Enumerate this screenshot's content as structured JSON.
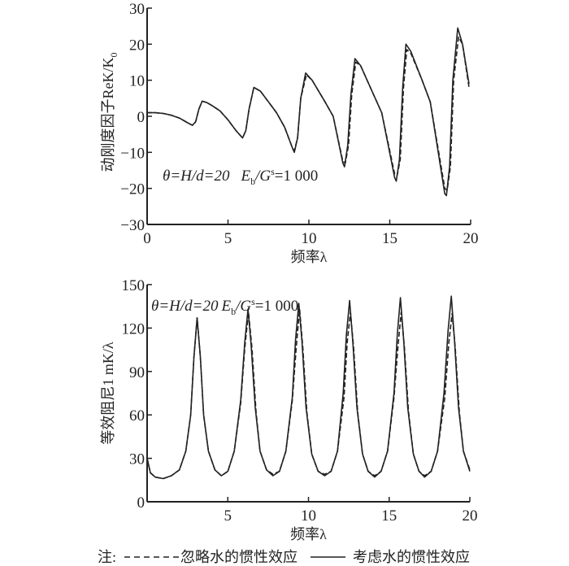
{
  "chart_data": [
    {
      "type": "line",
      "ylabel": "动刚度因子ReK/K",
      "ylabel_sub": "0",
      "xlabel": "频率λ",
      "xlim": [
        0,
        20
      ],
      "ylim": [
        -30,
        30
      ],
      "xticks": [
        "0",
        "5",
        "10",
        "15",
        "20"
      ],
      "xtick_values": [
        0,
        5,
        10,
        15,
        20
      ],
      "yticks": [
        "30",
        "20",
        "10",
        "0",
        "−10",
        "−20",
        "−30"
      ],
      "ytick_values": [
        30,
        20,
        10,
        0,
        -10,
        -20,
        -30
      ],
      "grid": false,
      "annotation": {
        "theta": "θ=H/d=20",
        "e": "E",
        "e_sub": "b",
        "g": "/G",
        "g_sup": "s",
        "val": "=1 000"
      },
      "series": [
        {
          "name": "考虑水的惯性效应",
          "style": "solid",
          "x": [
            0,
            0.5,
            1,
            1.5,
            2,
            2.5,
            2.8,
            3.0,
            3.2,
            3.4,
            3.7,
            4,
            4.5,
            5,
            5.5,
            5.9,
            6.1,
            6.3,
            6.6,
            7,
            7.5,
            8,
            8.5,
            9.0,
            9.1,
            9.3,
            9.5,
            9.8,
            10.2,
            11,
            11.5,
            12.1,
            12.2,
            12.4,
            12.6,
            12.85,
            13.2,
            14,
            14.5,
            15.3,
            15.4,
            15.6,
            15.8,
            16.0,
            16.3,
            17,
            17.5,
            18.4,
            18.5,
            18.7,
            18.9,
            19.2,
            19.5,
            19.9
          ],
          "y": [
            1,
            1,
            0.8,
            0.3,
            -0.5,
            -1.8,
            -2.5,
            -1.5,
            2,
            4.2,
            3.8,
            3,
            1.5,
            -1,
            -4,
            -6,
            -4,
            2,
            8,
            7,
            4,
            1,
            -3,
            -9,
            -10,
            -6,
            5,
            12,
            10,
            4,
            0,
            -13,
            -14,
            -8,
            6,
            16,
            14,
            6,
            1,
            -17,
            -18,
            -12,
            8,
            20,
            18,
            10,
            4,
            -21.5,
            -22,
            -14,
            10,
            24.5,
            20,
            9
          ]
        },
        {
          "name": "忽略水的惯性效应",
          "style": "dashed",
          "x": [
            0,
            0.5,
            1,
            1.5,
            2,
            2.5,
            2.8,
            3.0,
            3.2,
            3.4,
            3.7,
            4,
            4.5,
            5,
            5.5,
            5.9,
            6.1,
            6.3,
            6.6,
            7,
            7.5,
            8,
            8.5,
            9.0,
            9.1,
            9.3,
            9.5,
            9.85,
            10.2,
            11,
            11.5,
            12.1,
            12.25,
            12.45,
            12.65,
            12.9,
            13.2,
            14,
            14.5,
            15.3,
            15.45,
            15.65,
            15.85,
            16.05,
            16.3,
            17,
            17.5,
            18.4,
            18.55,
            18.75,
            18.95,
            19.25,
            19.5,
            19.9
          ],
          "y": [
            1,
            1,
            0.8,
            0.3,
            -0.5,
            -1.8,
            -2.5,
            -1.5,
            2,
            4.2,
            3.8,
            3,
            1.5,
            -1,
            -4,
            -6,
            -4,
            2,
            8,
            7,
            4,
            1,
            -3,
            -9,
            -9.5,
            -6,
            5,
            11.5,
            10,
            4,
            0,
            -12.5,
            -13,
            -8,
            6,
            15,
            14,
            6,
            1,
            -16,
            -16.5,
            -12,
            8,
            18.5,
            17.5,
            10,
            4,
            -20,
            -20.5,
            -14,
            10,
            22,
            20,
            8
          ]
        }
      ]
    },
    {
      "type": "line",
      "ylabel": "等效阻尼1 mK/λ",
      "xlabel": "频率λ",
      "xlim": [
        0,
        20
      ],
      "ylim": [
        0,
        150
      ],
      "xticks": [
        "5",
        "10",
        "15",
        "20"
      ],
      "xtick_values": [
        5,
        10,
        15,
        20
      ],
      "yticks": [
        "150",
        "120",
        "90",
        "60",
        "30",
        "0"
      ],
      "ytick_values": [
        150,
        120,
        90,
        60,
        30,
        0
      ],
      "grid": false,
      "annotation": {
        "theta": "θ=H/d=20",
        "e": "E",
        "e_sub": "b",
        "g": "/G",
        "g_sup": "s",
        "val": "=1 000"
      },
      "series": [
        {
          "name": "考虑水的惯性效应",
          "style": "solid",
          "x": [
            0,
            0.2,
            0.5,
            1,
            1.5,
            2,
            2.4,
            2.7,
            2.9,
            3.1,
            3.3,
            3.5,
            3.8,
            4.2,
            4.6,
            5.0,
            5.4,
            5.8,
            6.05,
            6.25,
            6.45,
            6.7,
            7.0,
            7.4,
            7.8,
            8.2,
            8.6,
            9.0,
            9.2,
            9.4,
            9.6,
            9.85,
            10.2,
            10.6,
            11.0,
            11.4,
            11.8,
            12.15,
            12.35,
            12.55,
            12.75,
            13.0,
            13.35,
            13.7,
            14.1,
            14.5,
            14.9,
            15.3,
            15.5,
            15.7,
            15.9,
            16.15,
            16.5,
            16.85,
            17.2,
            17.6,
            18.0,
            18.4,
            18.65,
            18.85,
            19.05,
            19.3,
            19.6,
            20
          ],
          "y": [
            30,
            20,
            17,
            16,
            18,
            22,
            35,
            60,
            100,
            127,
            100,
            60,
            35,
            22,
            18,
            21,
            35,
            70,
            110,
            133,
            108,
            65,
            35,
            22,
            18,
            21,
            35,
            72,
            112,
            137,
            110,
            65,
            33,
            21,
            18,
            21,
            35,
            75,
            115,
            139,
            110,
            65,
            33,
            21,
            17,
            21,
            35,
            75,
            115,
            141,
            112,
            65,
            33,
            21,
            17,
            21,
            35,
            75,
            118,
            142,
            112,
            65,
            35,
            21
          ]
        },
        {
          "name": "忽略水的惯性效应",
          "style": "dashed",
          "x": [
            0,
            0.2,
            0.5,
            1,
            1.5,
            2,
            2.4,
            2.7,
            2.9,
            3.1,
            3.3,
            3.5,
            3.8,
            4.2,
            4.6,
            5.0,
            5.4,
            5.8,
            6.05,
            6.28,
            6.5,
            6.75,
            7.0,
            7.4,
            7.8,
            8.2,
            8.6,
            9.0,
            9.25,
            9.45,
            9.65,
            9.9,
            10.2,
            10.6,
            11.0,
            11.4,
            11.8,
            12.2,
            12.4,
            12.6,
            12.8,
            13.05,
            13.35,
            13.7,
            14.1,
            14.5,
            14.9,
            15.3,
            15.55,
            15.75,
            15.95,
            16.2,
            16.5,
            16.85,
            17.2,
            17.6,
            18.0,
            18.45,
            18.7,
            18.9,
            19.1,
            19.35,
            19.6,
            20
          ],
          "y": [
            30,
            20,
            17,
            16,
            18,
            22,
            35,
            60,
            100,
            127,
            100,
            60,
            35,
            22,
            18,
            21,
            35,
            68,
            106,
            131,
            106,
            62,
            35,
            22,
            19,
            21,
            35,
            70,
            108,
            133,
            106,
            62,
            33,
            21,
            19,
            21,
            35,
            72,
            110,
            131,
            106,
            62,
            33,
            21,
            18,
            21,
            35,
            72,
            108,
            131,
            106,
            62,
            33,
            21,
            18,
            21,
            35,
            72,
            110,
            130,
            106,
            62,
            35,
            22
          ]
        }
      ]
    }
  ],
  "legend": {
    "prefix": "注:",
    "dashed_label": "忽略水的惯性效应",
    "solid_label": "考虑水的惯性效应",
    "position": "bottom"
  },
  "colors": {
    "line": "#222222",
    "background": "#ffffff"
  }
}
